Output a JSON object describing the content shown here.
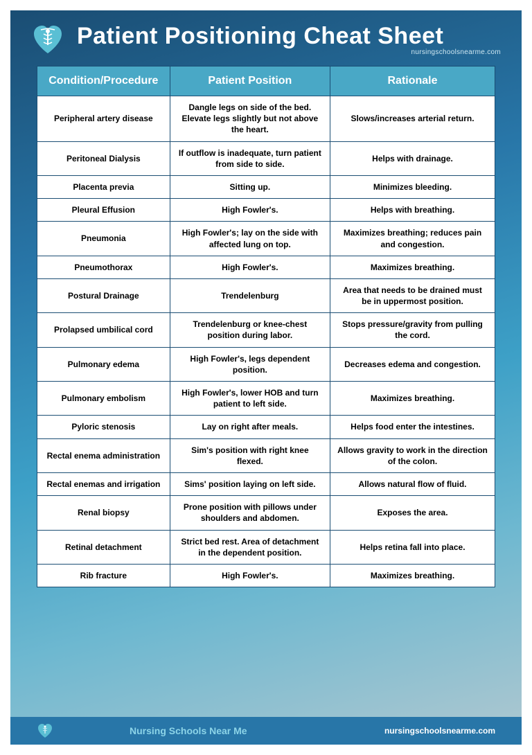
{
  "header": {
    "title": "Patient Positioning Cheat Sheet",
    "subtitle": "nursingschoolsnearme.com"
  },
  "table": {
    "columns": [
      "Condition/Procedure",
      "Patient Position",
      "Rationale"
    ],
    "rows": [
      [
        "Peripheral artery disease",
        "Dangle legs on side of the bed. Elevate legs slightly but not above the heart.",
        "Slows/increases arterial return."
      ],
      [
        "Peritoneal Dialysis",
        "If outflow is inadequate, turn patient from side to side.",
        "Helps with drainage."
      ],
      [
        "Placenta previa",
        "Sitting up.",
        "Minimizes bleeding."
      ],
      [
        "Pleural Effusion",
        "High Fowler's.",
        "Helps with breathing."
      ],
      [
        "Pneumonia",
        "High Fowler's; lay on the side with affected lung on top.",
        "Maximizes breathing; reduces pain and congestion."
      ],
      [
        "Pneumothorax",
        "High Fowler's.",
        "Maximizes breathing."
      ],
      [
        "Postural Drainage",
        "Trendelenburg",
        "Area that needs to be drained must be in uppermost position."
      ],
      [
        "Prolapsed umbilical cord",
        "Trendelenburg or knee-chest position during labor.",
        "Stops pressure/gravity from pulling the cord."
      ],
      [
        "Pulmonary edema",
        "High Fowler's, legs dependent position.",
        "Decreases edema and congestion."
      ],
      [
        "Pulmonary embolism",
        "High Fowler's, lower HOB and turn patient to left side.",
        "Maximizes breathing."
      ],
      [
        "Pyloric stenosis",
        "Lay on right after meals.",
        "Helps food enter the intestines."
      ],
      [
        "Rectal enema administration",
        "Sim's position with right knee flexed.",
        "Allows gravity to work in the direction of the colon."
      ],
      [
        "Rectal enemas and irrigation",
        "Sims' position laying on left side.",
        "Allows natural flow of fluid."
      ],
      [
        "Renal biopsy",
        "Prone position with pillows under shoulders and abdomen.",
        "Exposes the area."
      ],
      [
        "Retinal detachment",
        "Strict bed rest. Area of detachment in the dependent position.",
        "Helps retina fall into place."
      ],
      [
        "Rib fracture",
        "High Fowler's.",
        "Maximizes breathing."
      ]
    ]
  },
  "footer": {
    "center": "Nursing Schools Near Me",
    "right": "nursingschoolsnearme.com"
  },
  "colors": {
    "header_bg": "#49a8c6",
    "border": "#1a4d73",
    "footer_bg": "#2876a8",
    "title": "#ffffff",
    "footer_center": "#8cd4e8",
    "heart": "#5abfd4"
  }
}
